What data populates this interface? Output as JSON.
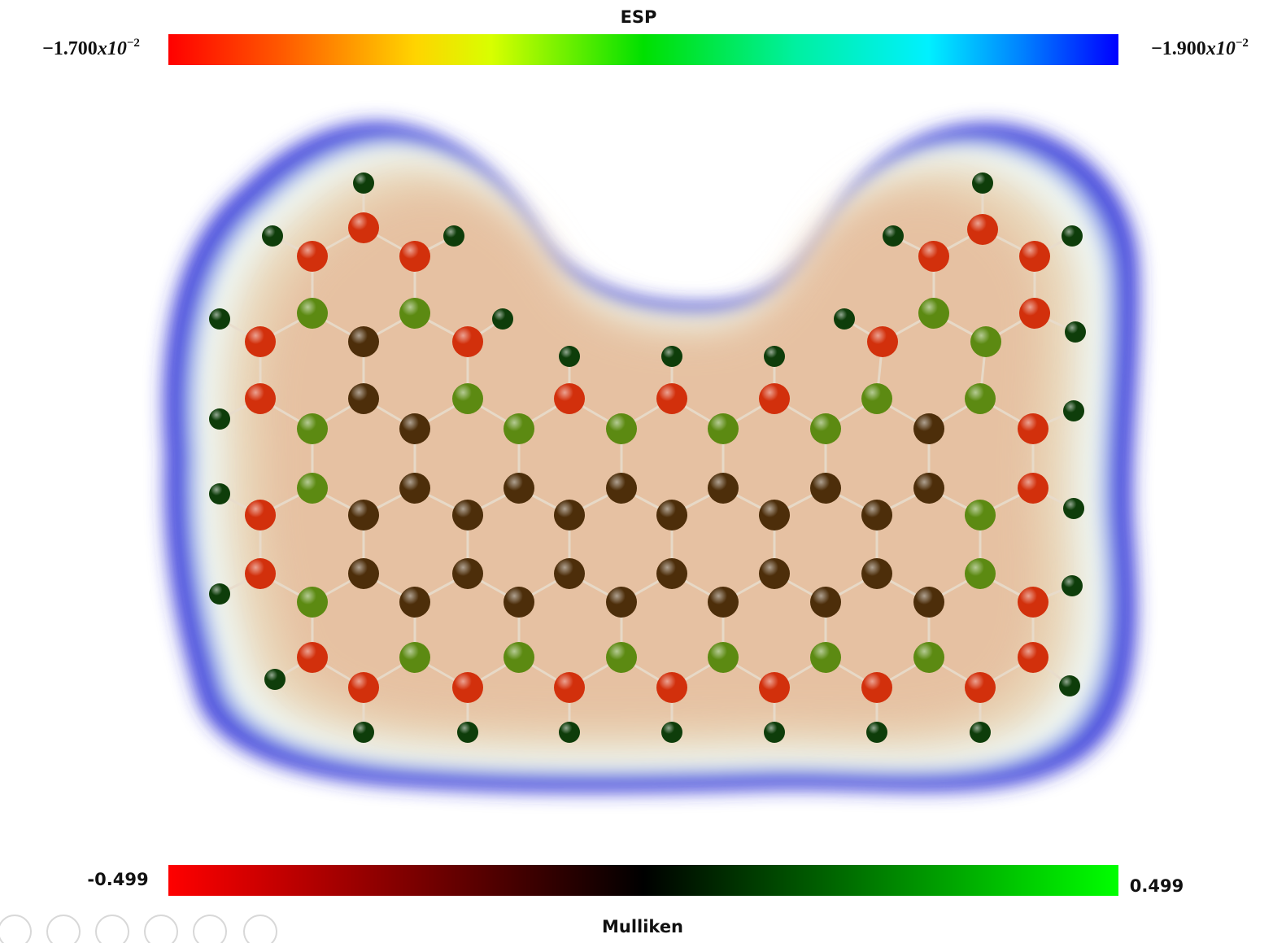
{
  "esp_scale": {
    "title": "ESP",
    "min_label": {
      "mantissa": "−1.700",
      "base": "x10",
      "exponent": "−2"
    },
    "max_label": {
      "mantissa": "−1.900",
      "base": "x10",
      "exponent": "−2"
    }
  },
  "mulliken_scale": {
    "title": "Mulliken",
    "min_label": "-0.499",
    "max_label": "0.499"
  }
}
